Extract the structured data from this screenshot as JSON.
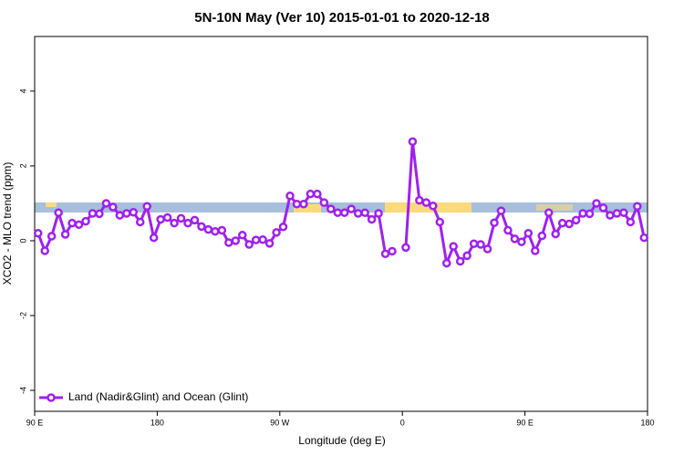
{
  "chart_data": {
    "type": "line",
    "title": "5N-10N May (Ver 10)   2015-01-01 to 2020-12-18",
    "xlabel": "Longitude (deg E)",
    "ylabel": "XCO2 - MLO trend (ppm)",
    "xlim": [
      90,
      540
    ],
    "xticks": [
      {
        "value": 90,
        "label": "90 E"
      },
      180,
      {
        "value": 270,
        "label": "90 W"
      },
      {
        "value": 360,
        "label": "0"
      },
      {
        "value": 450,
        "label": "90 E"
      },
      {
        "value": 540,
        "label": "180"
      }
    ],
    "ylim": [
      -4.56,
      5.46
    ],
    "yticks": [
      -4,
      -2,
      0,
      2,
      4
    ],
    "legend": "bottom-left",
    "x": [
      92.5,
      97.5,
      102.5,
      107.5,
      112.5,
      117.5,
      122.5,
      127.5,
      132.5,
      137.5,
      142.5,
      147.5,
      152.5,
      157.5,
      162.5,
      167.5,
      172.5,
      177.5,
      182.5,
      187.5,
      192.5,
      197.5,
      202.5,
      207.5,
      212.5,
      217.5,
      222.5,
      227.5,
      232.5,
      237.5,
      242.5,
      247.5,
      252.5,
      257.5,
      262.5,
      267.5,
      272.5,
      277.5,
      282.5,
      287.5,
      292.5,
      297.5,
      302.5,
      307.5,
      312.5,
      317.5,
      322.5,
      327.5,
      332.5,
      337.5,
      342.5,
      347.5,
      352.5,
      357.5,
      362.5,
      367.5,
      372.5,
      377.5,
      382.5,
      387.5,
      392.5,
      397.5,
      402.5,
      407.5,
      412.5,
      417.5,
      422.5,
      427.5,
      432.5,
      437.5,
      442.5,
      447.5,
      452.5,
      457.5,
      462.5,
      467.5,
      472.5,
      477.5,
      482.5,
      487.5,
      492.5,
      497.5,
      502.5,
      507.5,
      512.5,
      517.5,
      522.5,
      527.5,
      532.5,
      537.5
    ],
    "series": [
      {
        "name": "Land (Nadir&Glint) and Ocean (Glint)",
        "color": "#a020f0",
        "values": [
          0.2,
          -0.27,
          0.12,
          0.75,
          0.17,
          0.47,
          0.43,
          0.52,
          0.73,
          0.72,
          1.0,
          0.9,
          0.68,
          0.73,
          0.76,
          0.5,
          0.92,
          0.08,
          0.57,
          0.62,
          0.47,
          0.6,
          0.47,
          0.55,
          0.38,
          0.3,
          0.25,
          0.28,
          -0.05,
          0.0,
          0.15,
          -0.1,
          0.02,
          0.03,
          -0.07,
          0.22,
          0.37,
          1.2,
          0.98,
          0.98,
          1.25,
          1.25,
          1.02,
          0.85,
          0.75,
          0.75,
          0.85,
          0.73,
          0.75,
          0.57,
          0.73,
          -0.35,
          -0.28,
          null,
          -0.18,
          2.65,
          1.08,
          1.02,
          0.93,
          0.5,
          -0.6,
          -0.15,
          -0.55,
          -0.4,
          -0.08,
          -0.1,
          -0.22,
          0.48,
          0.8,
          0.28,
          0.05,
          -0.03,
          0.2,
          -0.27,
          0.13,
          0.75,
          0.18,
          0.47,
          0.45,
          0.55,
          0.73,
          0.72,
          1.0,
          0.88,
          0.68,
          0.73,
          0.75,
          0.5,
          0.92,
          0.08
        ]
      }
    ]
  }
}
